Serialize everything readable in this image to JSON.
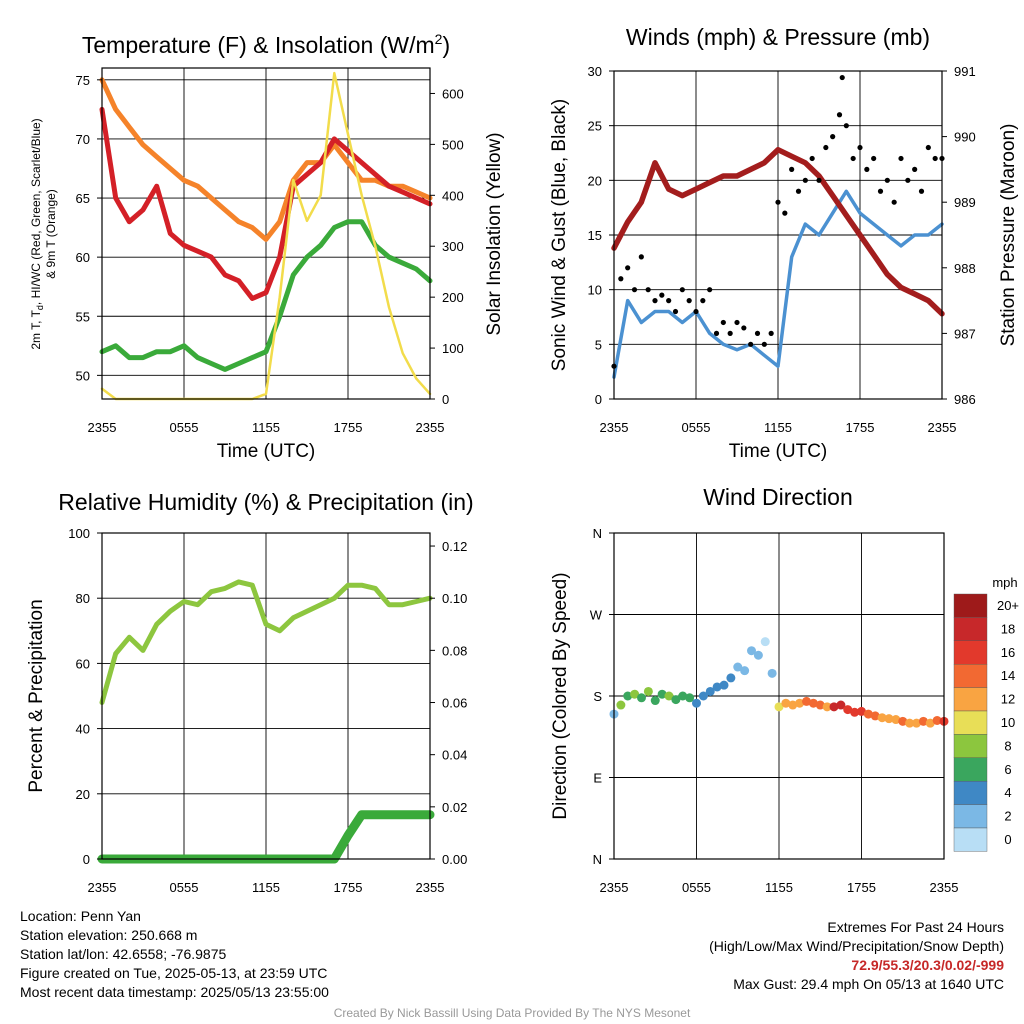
{
  "time_ticks": [
    "2355",
    "0555",
    "1155",
    "1755",
    "2355"
  ],
  "chart_data": [
    {
      "type": "line",
      "title": "Temperature (F) & Insolation (W/m²)",
      "xlabel": "Time (UTC)",
      "ylabel_left_lines": [
        "2m T, Td, HI/WC (Red, Green, Scarlet/Blue)",
        "& 9m T (Orange)"
      ],
      "ylabel_right": "Solar Insolation (Yellow)",
      "x_ticks": [
        "2355",
        "0555",
        "1155",
        "1755",
        "2355"
      ],
      "ylim_left": [
        48,
        76
      ],
      "y_ticks_left": [
        50,
        55,
        60,
        65,
        70,
        75
      ],
      "ylim_right": [
        0,
        650
      ],
      "y_ticks_right": [
        0,
        100,
        200,
        300,
        400,
        500,
        600
      ],
      "x_hours": [
        0,
        1,
        2,
        3,
        4,
        5,
        6,
        7,
        8,
        9,
        10,
        11,
        12,
        13,
        14,
        15,
        16,
        17,
        18,
        19,
        20,
        21,
        22,
        23,
        24
      ],
      "series": [
        {
          "key": "t9",
          "axis": "left",
          "color": "#f5832a",
          "values": [
            75,
            72.5,
            71,
            69.5,
            68.5,
            67.5,
            66.5,
            66,
            65,
            64,
            63,
            62.5,
            61.5,
            63,
            66.5,
            68,
            68,
            69.5,
            68,
            66.5,
            66.5,
            66,
            66,
            65.5,
            65
          ]
        },
        {
          "key": "t2",
          "axis": "left",
          "color": "#d42027",
          "values": [
            72.5,
            65,
            63,
            64,
            66,
            62,
            61,
            60.5,
            60,
            58.5,
            58,
            56.5,
            57,
            60,
            66,
            67,
            68,
            70,
            69,
            68,
            67,
            66,
            65.5,
            65,
            64.5
          ]
        },
        {
          "key": "td",
          "axis": "left",
          "color": "#3aaa3a",
          "values": [
            52,
            52.5,
            51.5,
            51.5,
            52,
            52,
            52.5,
            51.5,
            51,
            50.5,
            51,
            51.5,
            52,
            55,
            58.5,
            60,
            61,
            62.5,
            63,
            63,
            61,
            60,
            59.5,
            59,
            58
          ]
        },
        {
          "key": "sun",
          "axis": "right",
          "color": "#f2dc4b",
          "values": [
            20,
            0,
            0,
            0,
            0,
            0,
            0,
            0,
            0,
            0,
            0,
            0,
            10,
            200,
            430,
            350,
            400,
            640,
            520,
            400,
            300,
            180,
            90,
            40,
            10
          ]
        }
      ]
    },
    {
      "type": "line",
      "title": "Winds (mph) & Pressure (mb)",
      "xlabel": "Time (UTC)",
      "ylabel_left": "Sonic Wind & Gust (Blue, Black)",
      "ylabel_right": "Station Pressure (Maroon)",
      "x_ticks": [
        "2355",
        "0555",
        "1155",
        "1755",
        "2355"
      ],
      "ylim_left": [
        0,
        30
      ],
      "y_ticks_left": [
        0,
        5,
        10,
        15,
        20,
        25,
        30
      ],
      "ylim_right": [
        986,
        991
      ],
      "y_ticks_right": [
        986,
        987,
        988,
        989,
        990,
        991
      ],
      "x_hours": [
        0,
        1,
        2,
        3,
        4,
        5,
        6,
        7,
        8,
        9,
        10,
        11,
        12,
        13,
        14,
        15,
        16,
        17,
        18,
        19,
        20,
        21,
        22,
        23,
        24
      ],
      "series": [
        {
          "key": "wind",
          "axis": "left",
          "color": "#4b91d1",
          "values": [
            2,
            9,
            7,
            8,
            8,
            7,
            8,
            6,
            5,
            4.5,
            5,
            4,
            3,
            13,
            16,
            15,
            17,
            19,
            17,
            16,
            15,
            14,
            15,
            15,
            16
          ]
        },
        {
          "key": "pressure",
          "axis": "right",
          "color": "#a31d1d",
          "values": [
            988.3,
            988.7,
            989.0,
            989.6,
            989.2,
            989.1,
            989.2,
            989.3,
            989.4,
            989.4,
            989.5,
            989.6,
            989.8,
            989.7,
            989.6,
            989.4,
            989.1,
            988.8,
            988.5,
            988.2,
            987.9,
            987.7,
            987.6,
            987.5,
            987.3
          ]
        }
      ],
      "gust_points": {
        "key": "gust",
        "axis": "left",
        "color": "#000000",
        "hours": [
          0,
          0.5,
          1,
          1.5,
          2,
          2.5,
          3,
          3.5,
          4,
          4.5,
          5,
          5.5,
          6,
          6.5,
          7,
          7.5,
          8,
          8.5,
          9,
          9.5,
          10,
          10.5,
          11,
          11.5,
          12,
          12.5,
          13,
          13.5,
          14,
          14.5,
          15,
          15.5,
          16,
          16.5,
          16.7,
          17,
          17.5,
          18,
          18.5,
          19,
          19.5,
          20,
          20.5,
          21,
          21.5,
          22,
          22.5,
          23,
          23.5,
          24
        ],
        "values": [
          3,
          11,
          12,
          10,
          13,
          10,
          9,
          9.5,
          9,
          8,
          10,
          9,
          8,
          9,
          10,
          6,
          7,
          6,
          7,
          6.5,
          5,
          6,
          5,
          6,
          18,
          17,
          21,
          19,
          20,
          22,
          20,
          23,
          24,
          26,
          29.4,
          25,
          22,
          23,
          21,
          22,
          19,
          20,
          18,
          22,
          20,
          21,
          19,
          23,
          22,
          22
        ]
      }
    },
    {
      "type": "line",
      "title": "Relative Humidity (%) & Precipitation (in)",
      "ylabel_left": "Percent & Precipitation",
      "x_ticks": [
        "2355",
        "0555",
        "1155",
        "1755",
        "2355"
      ],
      "ylim_left": [
        0,
        100
      ],
      "y_ticks_left": [
        0,
        20,
        40,
        60,
        80,
        100
      ],
      "ylim_right": [
        0,
        0.125
      ],
      "y_ticks_right": [
        "0.00",
        "0.02",
        "0.04",
        "0.06",
        "0.08",
        "0.10",
        "0.12"
      ],
      "x_hours": [
        0,
        1,
        2,
        3,
        4,
        5,
        6,
        7,
        8,
        9,
        10,
        11,
        12,
        13,
        14,
        15,
        16,
        17,
        18,
        19,
        20,
        21,
        22,
        23,
        24
      ],
      "series": [
        {
          "key": "rh",
          "axis": "left",
          "color": "#8dc63f",
          "values": [
            48,
            63,
            68,
            64,
            72,
            76,
            79,
            78,
            82,
            83,
            85,
            84,
            72,
            70,
            74,
            76,
            78,
            80,
            84,
            84,
            83,
            78,
            78,
            79,
            80
          ]
        },
        {
          "key": "precip",
          "axis": "right",
          "color": "#3aaa3a",
          "values": [
            0,
            0,
            0,
            0,
            0,
            0,
            0,
            0,
            0,
            0,
            0,
            0,
            0,
            0,
            0,
            0,
            0,
            0,
            0.009,
            0.017,
            0.017,
            0.017,
            0.017,
            0.017,
            0.017
          ]
        }
      ]
    },
    {
      "type": "scatter",
      "title": "Wind Direction",
      "ylabel_left": "Direction (Colored By Speed)",
      "x_ticks": [
        "2355",
        "0555",
        "1155",
        "1755",
        "2355"
      ],
      "y_ticks_left": [
        "N",
        "E",
        "S",
        "W",
        "N"
      ],
      "ylim_left": [
        0,
        360
      ],
      "x_hours": [
        0,
        0.5,
        1,
        1.5,
        2,
        2.5,
        3,
        3.5,
        4,
        4.5,
        5,
        5.5,
        6,
        6.5,
        7,
        7.5,
        8,
        8.5,
        9,
        9.5,
        10,
        10.5,
        11,
        11.5,
        12,
        12.5,
        13,
        13.5,
        14,
        14.5,
        15,
        15.5,
        16,
        16.5,
        17,
        17.5,
        18,
        18.5,
        19,
        19.5,
        20,
        20.5,
        21,
        21.5,
        22,
        22.5,
        23,
        23.5,
        24
      ],
      "direction_deg": [
        160,
        170,
        180,
        182,
        178,
        185,
        175,
        182,
        180,
        176,
        180,
        178,
        172,
        180,
        185,
        190,
        192,
        200,
        212,
        208,
        230,
        225,
        240,
        205,
        168,
        172,
        170,
        172,
        174,
        172,
        170,
        168,
        168,
        170,
        165,
        162,
        163,
        160,
        158,
        156,
        155,
        154,
        152,
        150,
        150,
        152,
        150,
        153,
        152
      ],
      "speed_mph": [
        3,
        8,
        7,
        8,
        7,
        8,
        7,
        7,
        8,
        6,
        7,
        6,
        5,
        5,
        5,
        4,
        4,
        4,
        3,
        3,
        2,
        3,
        1,
        2,
        10,
        12,
        13,
        13,
        14,
        15,
        14,
        13,
        18,
        19,
        17,
        16,
        16,
        15,
        14,
        13,
        12,
        13,
        14,
        12,
        13,
        14,
        12,
        15,
        16
      ]
    }
  ],
  "colorbar": {
    "unit": "mph",
    "labels": [
      "20+",
      "18",
      "16",
      "14",
      "12",
      "10",
      "8",
      "6",
      "4",
      "2",
      "0"
    ],
    "colors": [
      "#9e1a1a",
      "#c7282a",
      "#e2392c",
      "#f26932",
      "#f9a442",
      "#e8de57",
      "#8cc63e",
      "#3aa65e",
      "#3f88c5",
      "#7bb8e5",
      "#b8def5"
    ]
  },
  "footer": {
    "location": "Location: Penn Yan",
    "elevation": "Station elevation: 250.668 m",
    "latlon": "Station lat/lon: 42.6558; -76.9875",
    "created": "Figure created on Tue, 2025-05-13, at 23:59 UTC",
    "recent": "Most recent data timestamp: 2025/05/13 23:55:00",
    "extremes_title": "Extremes For Past 24 Hours",
    "extremes_subtitle": "(High/Low/Max Wind/Precipitation/Snow Depth)",
    "extremes_values": "72.9/55.3/20.3/0.02/-999",
    "max_gust": "Max Gust: 29.4 mph On 05/13 at 1640 UTC",
    "credit": "Created By Nick Bassill Using Data Provided By The NYS Mesonet"
  },
  "colors": {
    "t2": "#d42027",
    "t9": "#f5832a",
    "td": "#3aaa3a",
    "sun": "#f2dc4b",
    "wind": "#4b91d1",
    "gust": "#000000",
    "pressure": "#a31d1d",
    "rh": "#8dc63f",
    "precip": "#3aaa3a"
  }
}
